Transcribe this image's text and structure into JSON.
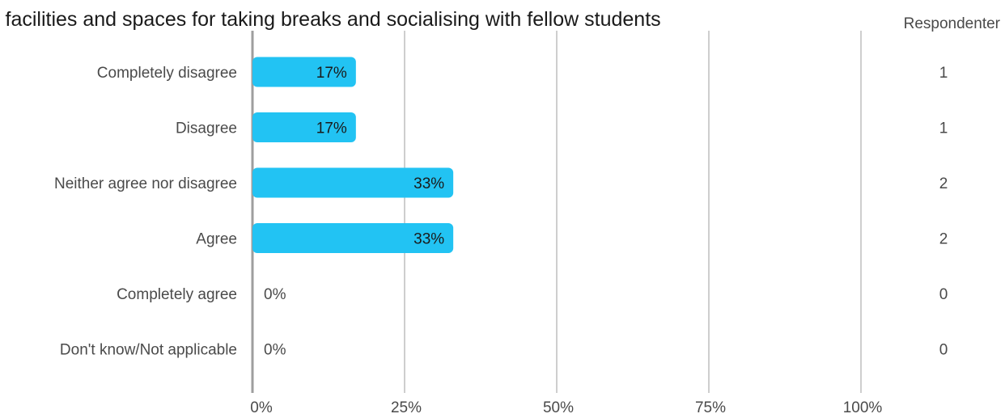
{
  "chart_data": {
    "type": "bar",
    "orientation": "horizontal",
    "title": "l facilities and spaces for taking breaks and socialising with fellow students",
    "count_header": "Respondenter",
    "categories": [
      "Completely disagree",
      "Disagree",
      "Neither agree nor disagree",
      "Agree",
      "Completely agree",
      "Don't know/Not applicable"
    ],
    "values": [
      17,
      17,
      33,
      33,
      0,
      0
    ],
    "value_labels": [
      "17%",
      "17%",
      "33%",
      "33%",
      "0%",
      "0%"
    ],
    "respondents": [
      1,
      1,
      2,
      2,
      0,
      0
    ],
    "x_ticks": [
      "0%",
      "25%",
      "50%",
      "75%",
      "100%"
    ],
    "xlim": [
      0,
      100
    ],
    "grid": true,
    "bar_color": "#22c3f3"
  }
}
